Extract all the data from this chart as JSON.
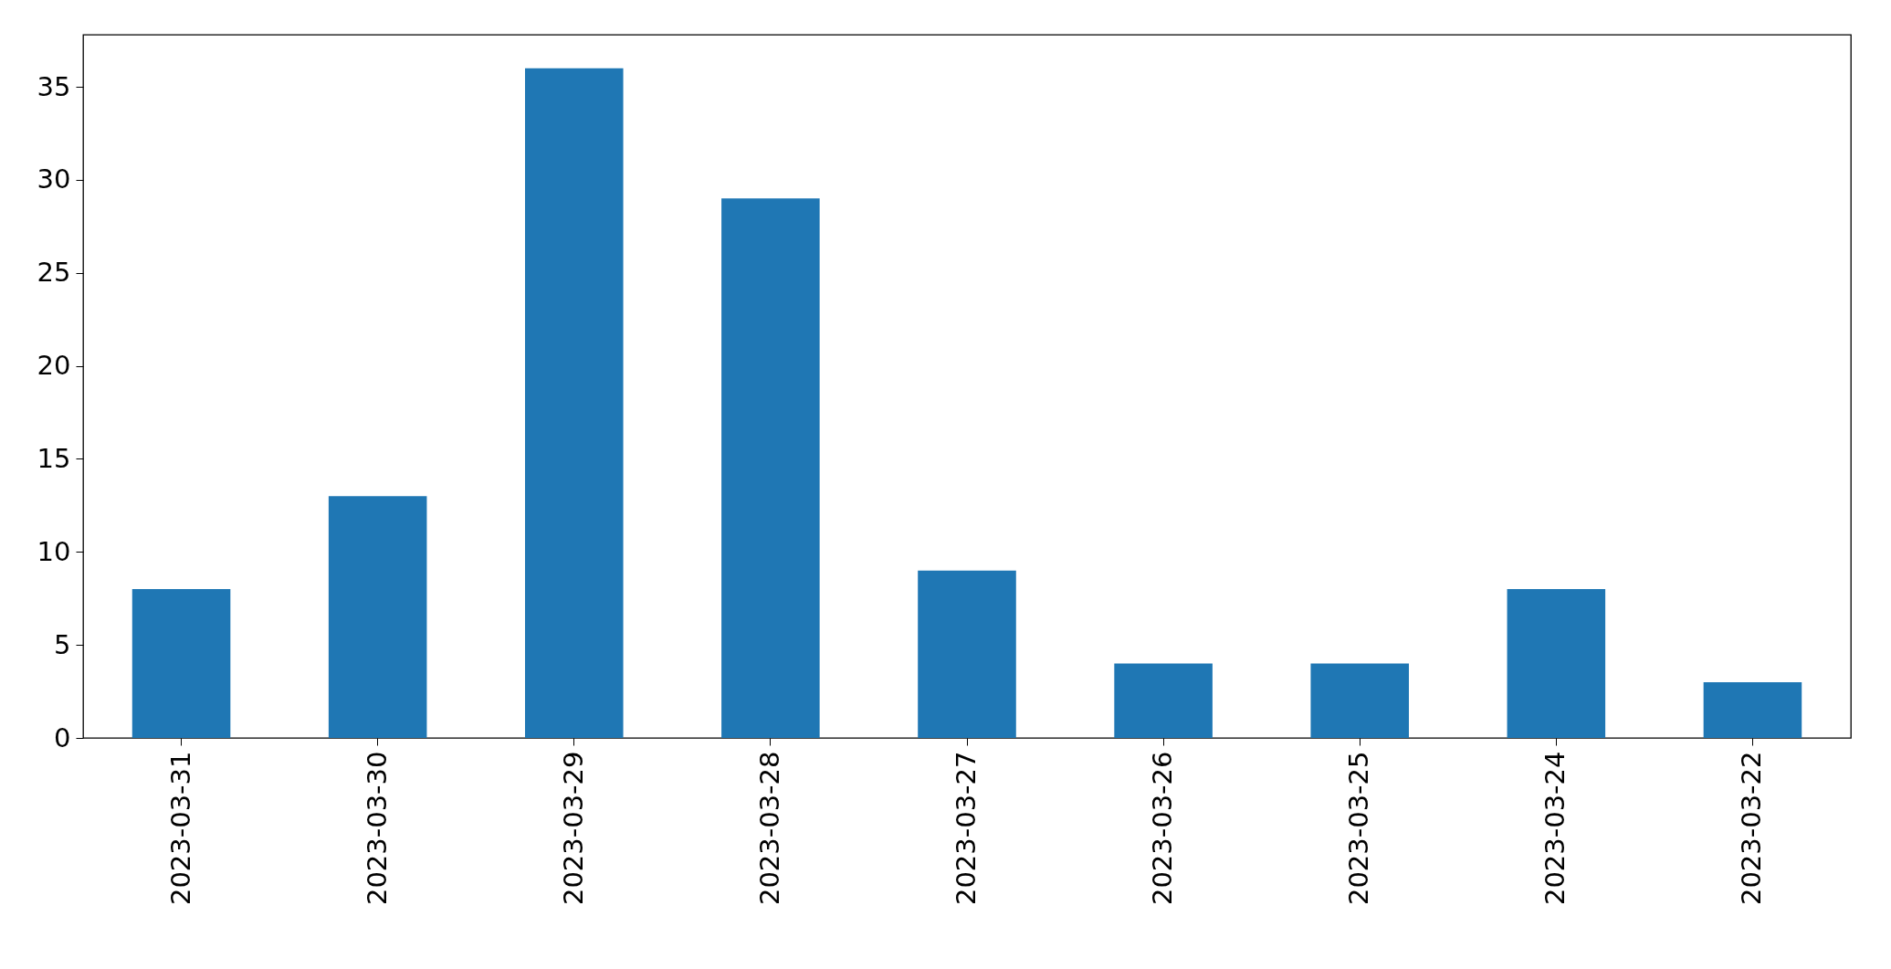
{
  "chart_data": {
    "type": "bar",
    "categories": [
      "2023-03-31",
      "2023-03-30",
      "2023-03-29",
      "2023-03-28",
      "2023-03-27",
      "2023-03-26",
      "2023-03-25",
      "2023-03-24",
      "2023-03-22"
    ],
    "values": [
      8,
      13,
      36,
      29,
      9,
      4,
      4,
      8,
      3
    ],
    "color": "#1f77b4",
    "ylim": [
      0,
      37.8
    ],
    "yticks": [
      0,
      5,
      10,
      15,
      20,
      25,
      30,
      35
    ],
    "grid": false
  }
}
